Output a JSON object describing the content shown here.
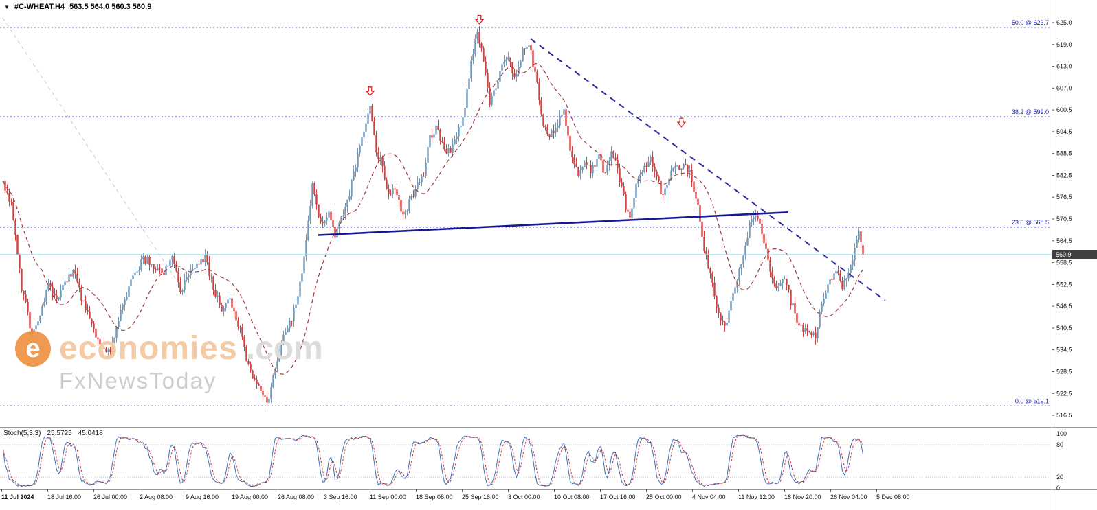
{
  "window": {
    "symbol": "#C-WHEAT,H4",
    "ohlc": "563.5 564.0 560.3 560.9",
    "dropdown_icon": "▼"
  },
  "watermark": {
    "logo_letter": "e",
    "brand": "economies",
    "brand_suffix": ".com",
    "tagline": "FxNewsToday"
  },
  "price_axis": {
    "current_price": "560.9",
    "ticks": [
      "625.0",
      "619.0",
      "613.0",
      "607.0",
      "600.5",
      "594.5",
      "588.5",
      "582.5",
      "576.5",
      "570.5",
      "564.5",
      "558.5",
      "552.5",
      "546.5",
      "540.5",
      "534.5",
      "528.5",
      "522.5",
      "516.5"
    ]
  },
  "time_axis": {
    "labels": [
      "11 Jul 2024",
      "18 Jul 16:00",
      "26 Jul 00:00",
      "2 Aug 08:00",
      "9 Aug 16:00",
      "19 Aug 00:00",
      "26 Aug 08:00",
      "3 Sep 16:00",
      "11 Sep 00:00",
      "18 Sep 08:00",
      "25 Sep 16:00",
      "3 Oct 00:00",
      "10 Oct 08:00",
      "17 Oct 16:00",
      "25 Oct 00:00",
      "4 Nov 04:00",
      "11 Nov 12:00",
      "18 Nov 20:00",
      "26 Nov 04:00",
      "5 Dec 08:00"
    ]
  },
  "fib_levels": [
    {
      "label": "50.0 @ 623.7",
      "price": 623.7
    },
    {
      "label": "38.2 @ 599.0",
      "price": 599.0
    },
    {
      "label": "23.6 @ 568.5",
      "price": 568.5
    },
    {
      "label": "0.0 @ 519.1",
      "price": 519.1
    }
  ],
  "indicator": {
    "name": "Stoch(5,3,3)",
    "main_value": "25.5725",
    "signal_value": "45.0418",
    "levels": [
      "100",
      "80",
      "20",
      "0"
    ],
    "params": [
      5,
      3,
      3
    ]
  },
  "colors": {
    "up_candle": "#7397b5",
    "down_candle": "#cf4242",
    "ma": "#a13a3a",
    "fib": "#3030a8",
    "stoch_main": "#3b6fb5",
    "stoch_signal": "#cc3333",
    "current_price_line": "#8fd9ec",
    "axis_line": "#9a9a9a",
    "level_line": "#c8c8c8",
    "arrow": "#d32222"
  },
  "chart_data": {
    "type": "candlestick",
    "title": "#C-WHEAT,H4",
    "timeframe": "H4",
    "candles": 418,
    "ylim": [
      516.5,
      625.0
    ],
    "ohlc_current": {
      "open": 563.5,
      "high": 564.0,
      "low": 560.3,
      "close": 560.9
    },
    "x_labels": [
      "11 Jul 2024",
      "18 Jul 16:00",
      "26 Jul 00:00",
      "2 Aug 08:00",
      "9 Aug 16:00",
      "19 Aug 00:00",
      "26 Aug 08:00",
      "3 Sep 16:00",
      "11 Sep 00:00",
      "18 Sep 08:00",
      "25 Sep 16:00",
      "3 Oct 00:00",
      "10 Oct 08:00",
      "17 Oct 16:00",
      "25 Oct 00:00",
      "4 Nov 04:00",
      "11 Nov 12:00",
      "18 Nov 20:00",
      "26 Nov 04:00",
      "5 Dec 08:00"
    ],
    "price_path_anchors": [
      [
        0,
        581
      ],
      [
        4,
        575
      ],
      [
        9,
        552
      ],
      [
        14,
        539
      ],
      [
        18,
        545
      ],
      [
        22,
        552
      ],
      [
        26,
        549
      ],
      [
        30,
        553
      ],
      [
        34,
        557
      ],
      [
        38,
        549
      ],
      [
        43,
        541
      ],
      [
        48,
        535
      ],
      [
        52,
        533
      ],
      [
        57,
        546
      ],
      [
        62,
        553
      ],
      [
        68,
        560
      ],
      [
        73,
        558
      ],
      [
        78,
        556
      ],
      [
        82,
        561
      ],
      [
        86,
        551
      ],
      [
        92,
        557
      ],
      [
        98,
        560
      ],
      [
        103,
        550
      ],
      [
        106,
        546
      ],
      [
        110,
        549
      ],
      [
        115,
        540
      ],
      [
        119,
        530
      ],
      [
        124,
        524
      ],
      [
        128,
        519.5
      ],
      [
        132,
        529
      ],
      [
        136,
        538
      ],
      [
        140,
        543
      ],
      [
        145,
        555
      ],
      [
        150,
        580
      ],
      [
        153,
        571
      ],
      [
        155,
        569
      ],
      [
        158,
        572.5
      ],
      [
        161,
        566
      ],
      [
        164,
        570.5
      ],
      [
        168,
        578
      ],
      [
        172,
        588
      ],
      [
        178,
        601
      ],
      [
        181,
        590
      ],
      [
        184,
        585
      ],
      [
        187,
        577
      ],
      [
        190,
        580
      ],
      [
        194,
        571
      ],
      [
        199,
        578
      ],
      [
        204,
        583
      ],
      [
        207,
        593
      ],
      [
        210,
        596
      ],
      [
        213,
        591
      ],
      [
        217,
        589
      ],
      [
        220,
        593
      ],
      [
        224,
        602
      ],
      [
        227,
        614
      ],
      [
        230,
        623.5
      ],
      [
        232,
        617
      ],
      [
        234,
        610
      ],
      [
        236,
        602
      ],
      [
        239,
        607
      ],
      [
        242,
        613
      ],
      [
        245,
        616
      ],
      [
        248,
        610
      ],
      [
        252,
        617
      ],
      [
        255,
        619
      ],
      [
        259,
        608
      ],
      [
        262,
        597
      ],
      [
        265,
        594
      ],
      [
        268,
        596
      ],
      [
        272,
        600
      ],
      [
        275,
        590
      ],
      [
        279,
        582
      ],
      [
        282,
        587
      ],
      [
        285,
        584
      ],
      [
        289,
        588
      ],
      [
        292,
        583
      ],
      [
        295,
        590
      ],
      [
        299,
        582
      ],
      [
        302,
        574
      ],
      [
        304,
        571
      ],
      [
        307,
        580
      ],
      [
        310,
        584
      ],
      [
        314,
        587
      ],
      [
        317,
        582
      ],
      [
        320,
        577
      ],
      [
        324,
        584
      ],
      [
        327,
        585
      ],
      [
        331,
        586
      ],
      [
        334,
        582
      ],
      [
        337,
        574
      ],
      [
        340,
        563
      ],
      [
        344,
        552
      ],
      [
        347,
        544
      ],
      [
        350,
        541
      ],
      [
        354,
        550
      ],
      [
        357,
        557
      ],
      [
        360,
        563
      ],
      [
        362,
        570
      ],
      [
        365,
        572
      ],
      [
        369,
        565
      ],
      [
        372,
        557
      ],
      [
        375,
        552
      ],
      [
        379,
        555
      ],
      [
        382,
        548
      ],
      [
        385,
        543
      ],
      [
        389,
        540
      ],
      [
        394,
        538.5
      ],
      [
        397,
        548
      ],
      [
        400,
        553
      ],
      [
        404,
        557
      ],
      [
        407,
        552
      ],
      [
        410,
        555
      ],
      [
        414,
        565
      ],
      [
        415,
        567
      ],
      [
        417,
        561
      ]
    ],
    "moving_average": {
      "type": "sma",
      "period": 20,
      "style": "dashed"
    },
    "overlays": {
      "trendlines": [
        {
          "name": "ascending-support-line",
          "from": [
            153,
            566.3
          ],
          "to": [
            381,
            572.6
          ],
          "color": "#181894",
          "width": 2.6,
          "dash": ""
        },
        {
          "name": "descending-resistance-line",
          "from": [
            256,
            620.5
          ],
          "to": [
            428,
            548.2
          ],
          "color": "#2a2aa0",
          "width": 2,
          "dash": "9,7"
        },
        {
          "name": "diagonal-guide-line",
          "from": [
            0,
            626.3
          ],
          "to": [
            84,
            554.1
          ],
          "color": "#c9c9c9",
          "width": 1,
          "dash": "5,5"
        }
      ],
      "arrows": [
        {
          "i": 178,
          "price": 607.2
        },
        {
          "i": 231,
          "price": 627.0
        },
        {
          "i": 329,
          "price": 598.6
        }
      ]
    },
    "stochastic": {
      "params": [
        5,
        3,
        3
      ],
      "last_main": 25.5725,
      "last_signal": 45.0418,
      "levels": [
        100,
        80,
        20,
        0
      ]
    }
  }
}
